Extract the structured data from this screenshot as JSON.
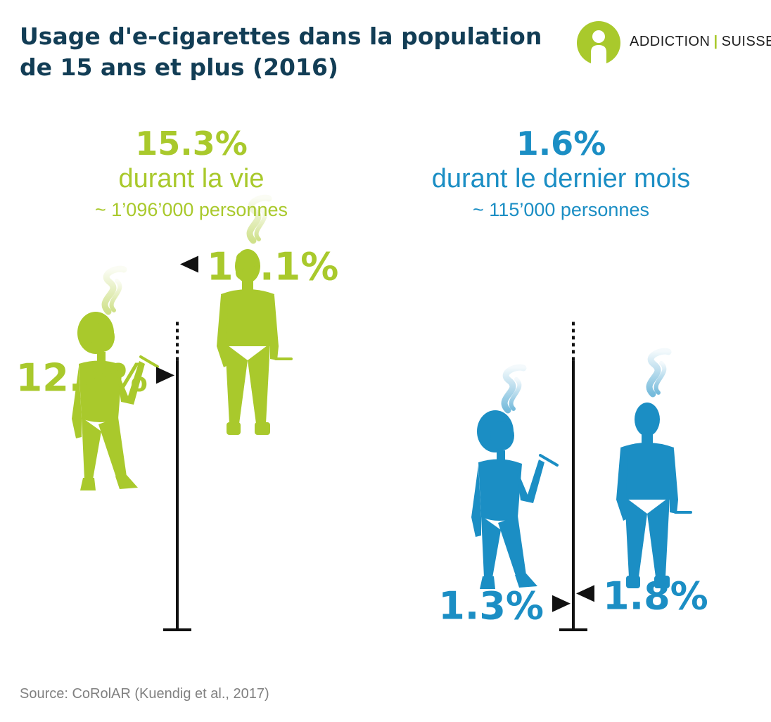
{
  "header": {
    "title": "Usage d'e-cigarettes dans la population de 15 ans et plus (2016)"
  },
  "logo": {
    "left": "ADDICTION",
    "separator": "|",
    "right": "SUISSE",
    "icon": "addiction-suisse-logo-icon"
  },
  "colors": {
    "green": "#a9c92c",
    "blue": "#1b8ec4",
    "title": "#123d55",
    "axis": "#111111"
  },
  "panels": [
    {
      "headline": "15.3%",
      "subtitle": "durant la vie",
      "people": "~ 1’096’000 personnes"
    },
    {
      "headline": "1.6%",
      "subtitle": "durant le dernier mois",
      "people": "~ 115’000 personnes"
    }
  ],
  "chart_data": [
    {
      "type": "bar",
      "title": "durant la vie",
      "categories": [
        "femmes",
        "hommes"
      ],
      "values": [
        12.6,
        18.1
      ],
      "labels": [
        "12.6%",
        "18.1%"
      ],
      "unit": "%",
      "ylim": [
        0,
        25
      ],
      "color": "#a9c92c",
      "icons": [
        "woman-silhouette-icon",
        "man-silhouette-icon"
      ]
    },
    {
      "type": "bar",
      "title": "durant le dernier mois",
      "categories": [
        "femmes",
        "hommes"
      ],
      "values": [
        1.3,
        1.8
      ],
      "labels": [
        "1.3%",
        "1.8%"
      ],
      "unit": "%",
      "ylim": [
        0,
        25
      ],
      "color": "#1b8ec4",
      "icons": [
        "woman-silhouette-icon",
        "man-silhouette-icon"
      ]
    }
  ],
  "footer": {
    "source": "Source: CoRolAR (Kuendig et al., 2017)"
  }
}
